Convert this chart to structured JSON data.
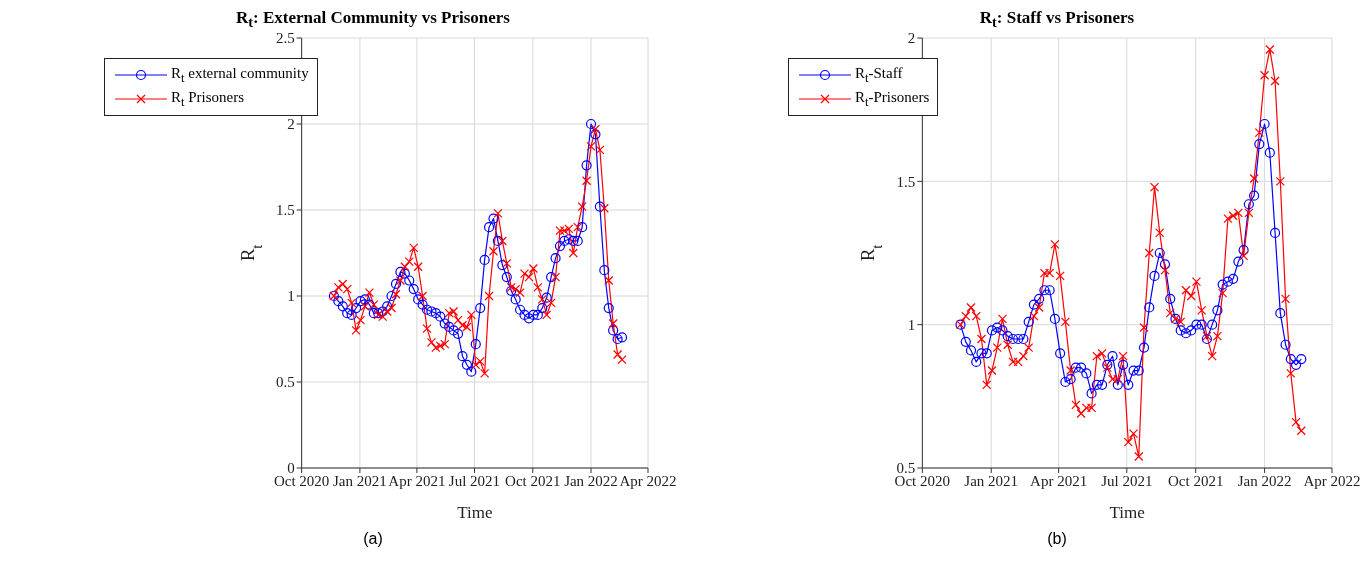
{
  "chart_data": [
    {
      "type": "line",
      "title": "R$_{t}$: External Community vs Prisoners",
      "xlabel": "Time",
      "ylabel": "R$_{t}$",
      "annotations": [
        "(a)"
      ],
      "x": [
        "2020-11-21",
        "2020-11-28",
        "2020-12-05",
        "2020-12-12",
        "2020-12-19",
        "2020-12-26",
        "2021-01-02",
        "2021-01-09",
        "2021-01-16",
        "2021-01-23",
        "2021-01-30",
        "2021-02-06",
        "2021-02-13",
        "2021-02-20",
        "2021-02-27",
        "2021-03-06",
        "2021-03-13",
        "2021-03-20",
        "2021-03-27",
        "2021-04-03",
        "2021-04-10",
        "2021-04-17",
        "2021-04-24",
        "2021-05-01",
        "2021-05-08",
        "2021-05-15",
        "2021-05-22",
        "2021-05-29",
        "2021-06-05",
        "2021-06-12",
        "2021-06-19",
        "2021-06-26",
        "2021-07-03",
        "2021-07-10",
        "2021-07-17",
        "2021-07-24",
        "2021-07-31",
        "2021-08-07",
        "2021-08-14",
        "2021-08-21",
        "2021-08-28",
        "2021-09-04",
        "2021-09-11",
        "2021-09-18",
        "2021-09-25",
        "2021-10-02",
        "2021-10-09",
        "2021-10-16",
        "2021-10-23",
        "2021-10-30",
        "2021-11-06",
        "2021-11-13",
        "2021-11-20",
        "2021-11-27",
        "2021-12-04",
        "2021-12-11",
        "2021-12-18",
        "2021-12-25",
        "2022-01-01",
        "2022-01-08",
        "2022-01-15",
        "2022-01-22",
        "2022-01-29",
        "2022-02-05",
        "2022-02-12",
        "2022-02-19"
      ],
      "series": [
        {
          "name": "R$_{t}$ external community",
          "color": "#0000ff",
          "marker": "circle",
          "values": [
            1.0,
            0.97,
            0.94,
            0.9,
            0.89,
            0.93,
            0.97,
            0.98,
            0.95,
            0.9,
            0.9,
            0.91,
            0.94,
            1.0,
            1.07,
            1.14,
            1.13,
            1.09,
            1.04,
            0.98,
            0.95,
            0.92,
            0.91,
            0.9,
            0.88,
            0.84,
            0.82,
            0.8,
            0.78,
            0.65,
            0.6,
            0.56,
            0.72,
            0.93,
            1.21,
            1.4,
            1.45,
            1.32,
            1.18,
            1.11,
            1.03,
            0.98,
            0.92,
            0.89,
            0.87,
            0.89,
            0.89,
            0.93,
            0.99,
            1.11,
            1.22,
            1.29,
            1.32,
            1.33,
            1.32,
            1.32,
            1.4,
            1.76,
            2.0,
            1.94,
            1.52,
            1.15,
            0.93,
            0.8,
            0.75,
            0.76
          ]
        },
        {
          "name": "R$_{t}$ Prisoners",
          "color": "#ff0000",
          "marker": "cross",
          "values": [
            1.0,
            1.05,
            1.07,
            1.04,
            0.96,
            0.8,
            0.86,
            0.94,
            1.02,
            0.95,
            0.89,
            0.88,
            0.91,
            0.93,
            1.01,
            1.09,
            1.17,
            1.2,
            1.28,
            1.17,
            1.0,
            0.81,
            0.73,
            0.7,
            0.71,
            0.72,
            0.9,
            0.91,
            0.86,
            0.83,
            0.82,
            0.89,
            0.6,
            0.62,
            0.55,
            1.0,
            1.26,
            1.48,
            1.32,
            1.19,
            1.05,
            1.04,
            1.02,
            1.13,
            1.11,
            1.16,
            1.05,
            0.98,
            0.89,
            0.96,
            1.11,
            1.38,
            1.38,
            1.39,
            1.25,
            1.4,
            1.52,
            1.67,
            1.87,
            1.97,
            1.85,
            1.51,
            1.09,
            0.84,
            0.66,
            0.63
          ]
        }
      ],
      "xlim": [
        "2020-10-01",
        "2022-04-01"
      ],
      "xticks": [
        {
          "value": "2020-10-01",
          "label": "Oct 2020"
        },
        {
          "value": "2021-01-01",
          "label": "Jan 2021"
        },
        {
          "value": "2021-04-01",
          "label": "Apr 2021"
        },
        {
          "value": "2021-07-01",
          "label": "Jul 2021"
        },
        {
          "value": "2021-10-01",
          "label": "Oct 2021"
        },
        {
          "value": "2022-01-01",
          "label": "Jan 2022"
        },
        {
          "value": "2022-04-01",
          "label": "Apr 2022"
        }
      ],
      "ylim": [
        0,
        2.5
      ],
      "yticks": [
        0,
        0.5,
        1,
        1.5,
        2,
        2.5
      ],
      "grid": true,
      "legend": "top left",
      "line_style": "solid"
    },
    {
      "type": "line",
      "title": "R$_{t}$: Staff vs Prisoners",
      "xlabel": "Time",
      "ylabel": "R$_{t}$",
      "annotations": [
        "(b)"
      ],
      "x": [
        "2020-11-21",
        "2020-11-28",
        "2020-12-05",
        "2020-12-12",
        "2020-12-19",
        "2020-12-26",
        "2021-01-02",
        "2021-01-09",
        "2021-01-16",
        "2021-01-23",
        "2021-01-30",
        "2021-02-06",
        "2021-02-13",
        "2021-02-20",
        "2021-02-27",
        "2021-03-06",
        "2021-03-13",
        "2021-03-20",
        "2021-03-27",
        "2021-04-03",
        "2021-04-10",
        "2021-04-17",
        "2021-04-24",
        "2021-05-01",
        "2021-05-08",
        "2021-05-15",
        "2021-05-22",
        "2021-05-29",
        "2021-06-05",
        "2021-06-12",
        "2021-06-19",
        "2021-06-26",
        "2021-07-03",
        "2021-07-10",
        "2021-07-17",
        "2021-07-24",
        "2021-07-31",
        "2021-08-07",
        "2021-08-14",
        "2021-08-21",
        "2021-08-28",
        "2021-09-04",
        "2021-09-11",
        "2021-09-18",
        "2021-09-25",
        "2021-10-02",
        "2021-10-09",
        "2021-10-16",
        "2021-10-23",
        "2021-10-30",
        "2021-11-06",
        "2021-11-13",
        "2021-11-20",
        "2021-11-27",
        "2021-12-04",
        "2021-12-11",
        "2021-12-18",
        "2021-12-25",
        "2022-01-01",
        "2022-01-08",
        "2022-01-15",
        "2022-01-22",
        "2022-01-29",
        "2022-02-05",
        "2022-02-12",
        "2022-02-19"
      ],
      "series": [
        {
          "name": "R$_{t}$-Staff",
          "color": "#0000ff",
          "marker": "circle",
          "values": [
            1.0,
            0.94,
            0.91,
            0.87,
            0.9,
            0.9,
            0.98,
            0.99,
            0.98,
            0.96,
            0.95,
            0.95,
            0.95,
            1.01,
            1.07,
            1.09,
            1.12,
            1.12,
            1.02,
            0.9,
            0.8,
            0.81,
            0.85,
            0.85,
            0.83,
            0.76,
            0.79,
            0.79,
            0.86,
            0.89,
            0.79,
            0.86,
            0.79,
            0.84,
            0.84,
            0.92,
            1.06,
            1.17,
            1.25,
            1.21,
            1.09,
            1.02,
            0.98,
            0.97,
            0.98,
            1.0,
            1.0,
            0.95,
            1.0,
            1.05,
            1.14,
            1.15,
            1.16,
            1.22,
            1.26,
            1.42,
            1.45,
            1.63,
            1.7,
            1.6,
            1.32,
            1.04,
            0.93,
            0.88,
            0.86,
            0.88
          ]
        },
        {
          "name": "R$_{t}$-Prisoners",
          "color": "#ff0000",
          "marker": "cross",
          "values": [
            1.0,
            1.03,
            1.06,
            1.03,
            0.95,
            0.79,
            0.84,
            0.92,
            1.02,
            0.93,
            0.87,
            0.87,
            0.89,
            0.92,
            1.03,
            1.06,
            1.18,
            1.18,
            1.28,
            1.17,
            1.01,
            0.84,
            0.72,
            0.69,
            0.71,
            0.71,
            0.89,
            0.9,
            0.85,
            0.81,
            0.81,
            0.89,
            0.59,
            0.62,
            0.54,
            0.99,
            1.25,
            1.48,
            1.32,
            1.19,
            1.04,
            1.02,
            1.01,
            1.12,
            1.1,
            1.15,
            1.05,
            0.96,
            0.89,
            0.96,
            1.11,
            1.37,
            1.38,
            1.39,
            1.24,
            1.39,
            1.51,
            1.67,
            1.87,
            1.96,
            1.85,
            1.5,
            1.09,
            0.83,
            0.66,
            0.63
          ]
        }
      ],
      "xlim": [
        "2020-10-01",
        "2022-04-01"
      ],
      "xticks": [
        {
          "value": "2020-10-01",
          "label": "Oct 2020"
        },
        {
          "value": "2021-01-01",
          "label": "Jan 2021"
        },
        {
          "value": "2021-04-01",
          "label": "Apr 2021"
        },
        {
          "value": "2021-07-01",
          "label": "Jul 2021"
        },
        {
          "value": "2021-10-01",
          "label": "Oct 2021"
        },
        {
          "value": "2022-01-01",
          "label": "Jan 2022"
        },
        {
          "value": "2022-04-01",
          "label": "Apr 2022"
        }
      ],
      "ylim": [
        0.5,
        2
      ],
      "yticks": [
        0.5,
        1,
        1.5,
        2
      ],
      "grid": true,
      "legend": "top left",
      "line_style": "solid"
    }
  ]
}
